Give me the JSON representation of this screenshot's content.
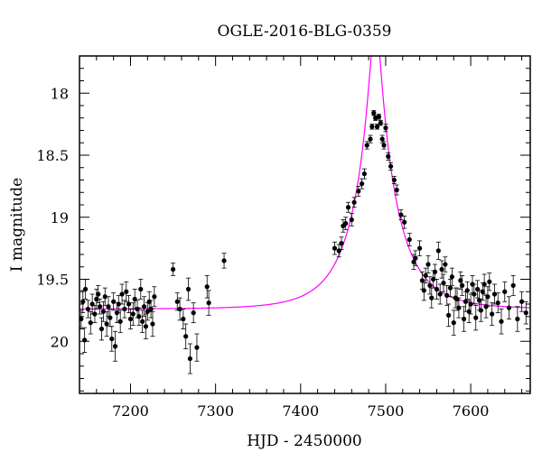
{
  "chart_data": {
    "type": "scatter",
    "title": "OGLE-2016-BLG-0359",
    "xlabel": "HJD - 2450000",
    "ylabel": "I magnitude",
    "xlim": [
      7140,
      7670
    ],
    "ylim": [
      20.42,
      17.7
    ],
    "y_inverted": true,
    "x_ticks": [
      7200,
      7300,
      7400,
      7500,
      7600
    ],
    "x_tick_labels": [
      "7200",
      "7300",
      "7400",
      "7500",
      "7600"
    ],
    "y_ticks": [
      18,
      18.5,
      19,
      19.5,
      20
    ],
    "y_tick_labels": [
      "18",
      "18.5",
      "19",
      "19.5",
      "20"
    ],
    "grid": false,
    "colors": {
      "points": "#000000",
      "model": "#ff00ff",
      "frame": "#000000"
    },
    "series": [
      {
        "kind": "points_with_errorbars",
        "points": [
          [
            7142,
            19.82,
            0.07
          ],
          [
            7144,
            19.68,
            0.09
          ],
          [
            7146,
            19.99,
            0.1
          ],
          [
            7147,
            19.58,
            0.08
          ],
          [
            7150,
            19.74,
            0.07
          ],
          [
            7153,
            19.85,
            0.09
          ],
          [
            7155,
            19.7,
            0.08
          ],
          [
            7158,
            19.78,
            0.07
          ],
          [
            7160,
            19.66,
            0.08
          ],
          [
            7162,
            19.62,
            0.07
          ],
          [
            7164,
            19.72,
            0.06
          ],
          [
            7166,
            19.9,
            0.09
          ],
          [
            7168,
            19.76,
            0.08
          ],
          [
            7170,
            19.64,
            0.07
          ],
          [
            7172,
            19.86,
            0.1
          ],
          [
            7174,
            19.72,
            0.08
          ],
          [
            7176,
            19.81,
            0.07
          ],
          [
            7178,
            19.98,
            0.1
          ],
          [
            7180,
            19.68,
            0.07
          ],
          [
            7182,
            20.04,
            0.12
          ],
          [
            7184,
            19.77,
            0.08
          ],
          [
            7186,
            19.7,
            0.07
          ],
          [
            7188,
            19.84,
            0.09
          ],
          [
            7190,
            19.62,
            0.08
          ],
          [
            7193,
            19.74,
            0.07
          ],
          [
            7195,
            19.6,
            0.08
          ],
          [
            7198,
            19.7,
            0.07
          ],
          [
            7200,
            19.82,
            0.08
          ],
          [
            7203,
            19.78,
            0.09
          ],
          [
            7205,
            19.66,
            0.08
          ],
          [
            7208,
            19.74,
            0.07
          ],
          [
            7210,
            19.8,
            0.07
          ],
          [
            7212,
            19.58,
            0.08
          ],
          [
            7214,
            19.84,
            0.09
          ],
          [
            7216,
            19.72,
            0.08
          ],
          [
            7218,
            19.88,
            0.1
          ],
          [
            7220,
            19.76,
            0.07
          ],
          [
            7222,
            19.68,
            0.08
          ],
          [
            7224,
            19.74,
            0.07
          ],
          [
            7226,
            19.86,
            0.1
          ],
          [
            7228,
            19.64,
            0.08
          ],
          [
            7250,
            19.42,
            0.05
          ],
          [
            7255,
            19.68,
            0.07
          ],
          [
            7258,
            19.74,
            0.09
          ],
          [
            7262,
            19.82,
            0.08
          ],
          [
            7265,
            19.96,
            0.1
          ],
          [
            7268,
            19.58,
            0.09
          ],
          [
            7270,
            20.14,
            0.12
          ],
          [
            7274,
            19.77,
            0.08
          ],
          [
            7278,
            20.05,
            0.11
          ],
          [
            7290,
            19.56,
            0.09
          ],
          [
            7292,
            19.69,
            0.1
          ],
          [
            7310,
            19.35,
            0.06
          ],
          [
            7440,
            19.25,
            0.05
          ],
          [
            7445,
            19.27,
            0.05
          ],
          [
            7448,
            19.21,
            0.05
          ],
          [
            7450,
            19.07,
            0.05
          ],
          [
            7453,
            19.05,
            0.05
          ],
          [
            7456,
            18.92,
            0.04
          ],
          [
            7460,
            19.02,
            0.05
          ],
          [
            7463,
            18.88,
            0.04
          ],
          [
            7468,
            18.79,
            0.04
          ],
          [
            7472,
            18.73,
            0.04
          ],
          [
            7475,
            18.65,
            0.04
          ],
          [
            7478,
            18.42,
            0.03
          ],
          [
            7482,
            18.37,
            0.03
          ],
          [
            7484,
            18.27,
            0.02
          ],
          [
            7486,
            18.16,
            0.02
          ],
          [
            7488,
            18.2,
            0.02
          ],
          [
            7490,
            18.27,
            0.02
          ],
          [
            7492,
            18.19,
            0.02
          ],
          [
            7494,
            18.24,
            0.02
          ],
          [
            7496,
            18.37,
            0.03
          ],
          [
            7498,
            18.42,
            0.03
          ],
          [
            7500,
            18.28,
            0.03
          ],
          [
            7503,
            18.51,
            0.03
          ],
          [
            7506,
            18.59,
            0.03
          ],
          [
            7510,
            18.7,
            0.03
          ],
          [
            7513,
            18.78,
            0.04
          ],
          [
            7518,
            18.98,
            0.04
          ],
          [
            7522,
            19.04,
            0.05
          ],
          [
            7528,
            19.18,
            0.05
          ],
          [
            7533,
            19.36,
            0.06
          ],
          [
            7535,
            19.33,
            0.06
          ],
          [
            7540,
            19.25,
            0.06
          ],
          [
            7543,
            19.51,
            0.07
          ],
          [
            7545,
            19.59,
            0.08
          ],
          [
            7547,
            19.47,
            0.06
          ],
          [
            7550,
            19.38,
            0.07
          ],
          [
            7552,
            19.55,
            0.07
          ],
          [
            7554,
            19.65,
            0.08
          ],
          [
            7556,
            19.5,
            0.07
          ],
          [
            7558,
            19.44,
            0.06
          ],
          [
            7560,
            19.58,
            0.08
          ],
          [
            7562,
            19.27,
            0.07
          ],
          [
            7564,
            19.62,
            0.08
          ],
          [
            7566,
            19.42,
            0.07
          ],
          [
            7568,
            19.53,
            0.07
          ],
          [
            7570,
            19.38,
            0.06
          ],
          [
            7572,
            19.63,
            0.08
          ],
          [
            7574,
            19.79,
            0.09
          ],
          [
            7576,
            19.57,
            0.07
          ],
          [
            7578,
            19.48,
            0.07
          ],
          [
            7580,
            19.85,
            0.1
          ],
          [
            7582,
            19.65,
            0.08
          ],
          [
            7584,
            19.66,
            0.09
          ],
          [
            7586,
            19.73,
            0.08
          ],
          [
            7588,
            19.51,
            0.07
          ],
          [
            7590,
            19.55,
            0.08
          ],
          [
            7592,
            19.82,
            0.1
          ],
          [
            7594,
            19.68,
            0.08
          ],
          [
            7596,
            19.59,
            0.07
          ],
          [
            7598,
            19.76,
            0.09
          ],
          [
            7600,
            19.7,
            0.08
          ],
          [
            7602,
            19.54,
            0.07
          ],
          [
            7604,
            19.62,
            0.08
          ],
          [
            7606,
            19.81,
            0.1
          ],
          [
            7608,
            19.58,
            0.07
          ],
          [
            7610,
            19.67,
            0.08
          ],
          [
            7612,
            19.75,
            0.09
          ],
          [
            7614,
            19.6,
            0.07
          ],
          [
            7616,
            19.54,
            0.08
          ],
          [
            7618,
            19.72,
            0.09
          ],
          [
            7620,
            19.64,
            0.08
          ],
          [
            7622,
            19.52,
            0.07
          ],
          [
            7625,
            19.78,
            0.09
          ],
          [
            7628,
            19.62,
            0.08
          ],
          [
            7632,
            19.69,
            0.08
          ],
          [
            7636,
            19.84,
            0.1
          ],
          [
            7640,
            19.6,
            0.08
          ],
          [
            7645,
            19.73,
            0.09
          ],
          [
            7650,
            19.55,
            0.08
          ],
          [
            7655,
            19.82,
            0.1
          ],
          [
            7660,
            19.68,
            0.08
          ],
          [
            7665,
            19.77,
            0.09
          ]
        ]
      },
      {
        "kind": "model_curve",
        "baseline_mag": 19.74,
        "t0": 7488,
        "u0": 0.12,
        "tE": 52
      }
    ]
  }
}
